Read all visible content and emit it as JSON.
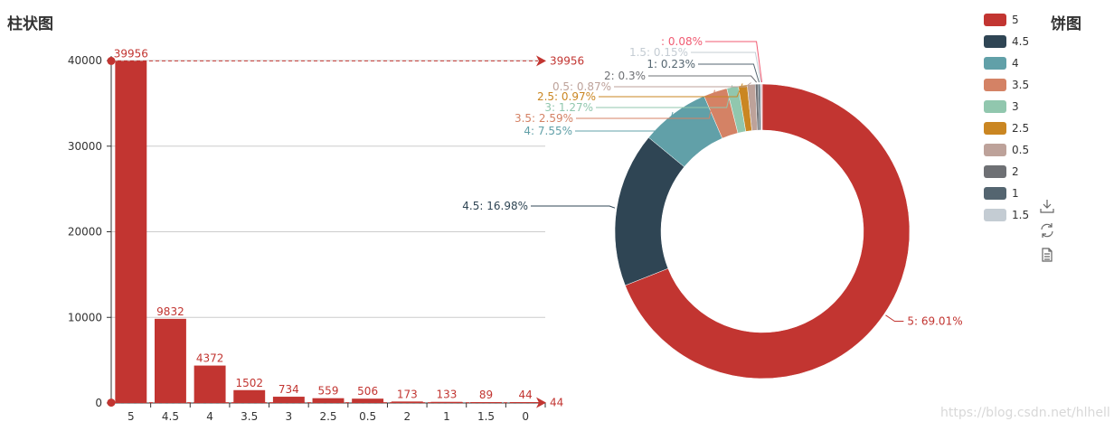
{
  "titles": {
    "bar": "柱状图",
    "pie": "饼图"
  },
  "watermark": "https://blog.csdn.net/hlhell",
  "colors": {
    "bar": "#c23531",
    "axis": "#333333",
    "grid": "#cccccc",
    "text": "#333333",
    "pie": [
      "#c23531",
      "#2f4554",
      "#61a0a8",
      "#d48265",
      "#91c7ae",
      "#ca8622",
      "#bda29a",
      "#6e7074",
      "#546570",
      "#c4ccd3",
      "#f05b72"
    ]
  },
  "toolbox": [
    {
      "name": "download-icon",
      "label": "download"
    },
    {
      "name": "refresh-icon",
      "label": "restore"
    },
    {
      "name": "dataview-icon",
      "label": "data view"
    }
  ],
  "chart_data": [
    {
      "type": "bar",
      "title": "柱状图",
      "categories": [
        "5",
        "4.5",
        "4",
        "3.5",
        "3",
        "2.5",
        "0.5",
        "2",
        "1",
        "1.5",
        "0"
      ],
      "values": [
        39956,
        9832,
        4372,
        1502,
        734,
        559,
        506,
        173,
        133,
        89,
        44
      ],
      "ylim": [
        0,
        40000
      ],
      "yticks": [
        0,
        10000,
        20000,
        30000,
        40000
      ],
      "markers": {
        "max": 39956,
        "min": 44
      },
      "grid": true
    },
    {
      "type": "pie",
      "title": "饼图",
      "donut": true,
      "legend_position": "top-right",
      "legend": [
        "5",
        "4.5",
        "4",
        "3.5",
        "3",
        "2.5",
        "0.5",
        "2",
        "1",
        "1.5"
      ],
      "slices": [
        {
          "name": "5",
          "percent": 69.01,
          "label": "5: 69.01%"
        },
        {
          "name": "4.5",
          "percent": 16.98,
          "label": "4.5: 16.98%"
        },
        {
          "name": "4",
          "percent": 7.55,
          "label": "4: 7.55%"
        },
        {
          "name": "3.5",
          "percent": 2.59,
          "label": "3.5: 2.59%"
        },
        {
          "name": "3",
          "percent": 1.27,
          "label": "3: 1.27%"
        },
        {
          "name": "2.5",
          "percent": 0.97,
          "label": "2.5: 0.97%"
        },
        {
          "name": "0.5",
          "percent": 0.87,
          "label": "0.5: 0.87%"
        },
        {
          "name": "2",
          "percent": 0.3,
          "label": "2: 0.3%"
        },
        {
          "name": "1",
          "percent": 0.23,
          "label": "1: 0.23%"
        },
        {
          "name": "1.5",
          "percent": 0.15,
          "label": "1.5: 0.15%"
        },
        {
          "name": "",
          "percent": 0.08,
          "label": ": 0.08%"
        }
      ]
    }
  ]
}
